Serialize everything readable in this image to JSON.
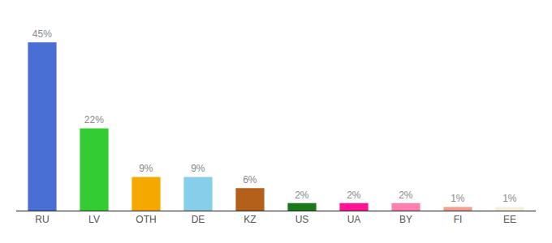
{
  "chart_data": {
    "type": "bar",
    "categories": [
      "RU",
      "LV",
      "OTH",
      "DE",
      "KZ",
      "US",
      "UA",
      "BY",
      "FI",
      "EE"
    ],
    "values": [
      45,
      22,
      9,
      9,
      6,
      2,
      2,
      2,
      1,
      1
    ],
    "value_labels": [
      "45%",
      "22%",
      "9%",
      "9%",
      "6%",
      "2%",
      "2%",
      "2%",
      "1%",
      "1%"
    ],
    "data_labels": true,
    "colors": [
      "#4a6fd4",
      "#33cc33",
      "#f5a800",
      "#87ceeb",
      "#b5601a",
      "#1a7a1a",
      "#ff1493",
      "#ff80b0",
      "#f4a090",
      "#f5f0dc"
    ],
    "ylim": [
      0,
      52
    ],
    "tick_labels": "x",
    "grid": false
  }
}
